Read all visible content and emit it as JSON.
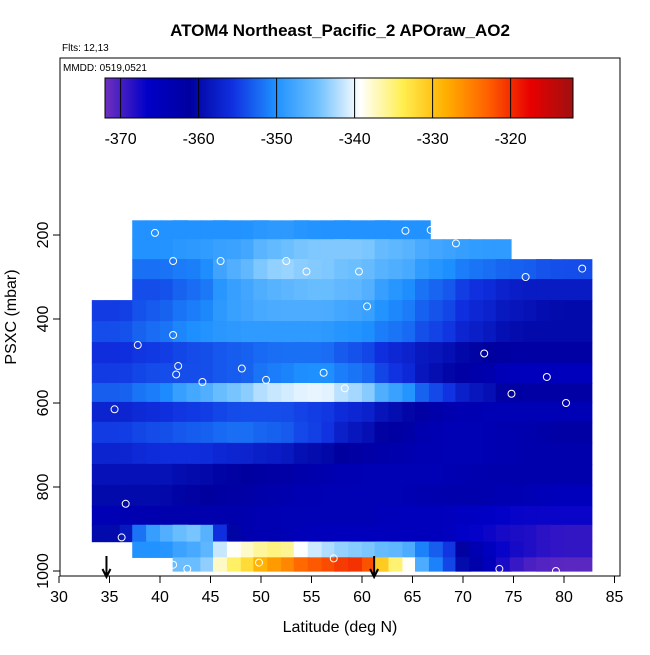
{
  "header": {
    "title": "ATOM4 Northeast_Pacific_2 APOraw_AO2",
    "flights_label": "Flts: 12,13",
    "dates_label": "MMDD: 0519,0521"
  },
  "chart_data": {
    "type": "heatmap",
    "xlabel": "Latitude (deg N)",
    "ylabel": "PSXC (mbar)",
    "xlim": [
      30,
      85
    ],
    "ylim": [
      1030,
      0
    ],
    "x_ticks": [
      30,
      35,
      40,
      45,
      50,
      55,
      60,
      65,
      70,
      75,
      80,
      85
    ],
    "y_ticks": [
      200,
      400,
      600,
      800,
      1000
    ],
    "colorbar": {
      "range": [
        -372,
        -312
      ],
      "ticks": [
        -370,
        -360,
        -350,
        -340,
        -330,
        -320
      ],
      "colors": [
        "#7030c0",
        "#0000c8",
        "#00009e",
        "#1030e0",
        "#1e90ff",
        "#6ec0ff",
        "#ffffff",
        "#ffee50",
        "#ffb000",
        "#ff6000",
        "#e80000",
        "#a01010"
      ]
    },
    "x_levels": [
      36,
      40,
      44,
      48,
      52,
      56,
      60,
      64,
      68,
      72,
      76,
      80
    ],
    "p_levels": [
      185,
      235,
      280,
      330,
      380,
      430,
      480,
      530,
      575,
      620,
      670,
      720,
      770,
      820,
      870,
      910,
      950,
      985
    ],
    "values": [
      [
        null,
        -350,
        -350,
        -350,
        -349,
        -350,
        -350,
        -350,
        null,
        null,
        null,
        null
      ],
      [
        null,
        -350,
        -349,
        -348,
        -345,
        -344,
        -344,
        -346,
        -348,
        -349,
        null,
        null
      ],
      [
        null,
        -352,
        -351,
        -346,
        -343,
        -344,
        -345,
        -347,
        -350,
        -352,
        -353,
        -354
      ],
      [
        null,
        -354,
        -352,
        -348,
        -346,
        -345,
        -346,
        -350,
        -353,
        -356,
        -358,
        -358
      ],
      [
        -355,
        -353,
        -351,
        -348,
        -347,
        -347,
        -348,
        -351,
        -354,
        -357,
        -359,
        -360
      ],
      [
        -354,
        -352,
        -350,
        -349,
        -349,
        -349,
        -350,
        -352,
        -355,
        -358,
        -360,
        -360
      ],
      [
        -356,
        -355,
        -354,
        -353,
        -352,
        -352,
        -354,
        -357,
        -359,
        -361,
        -362,
        -362
      ],
      [
        -355,
        -354,
        -354,
        -353,
        -351,
        -350,
        -352,
        -356,
        -360,
        -363,
        -365,
        -365
      ],
      [
        -353,
        -351,
        -347,
        -344,
        -341,
        -340,
        -343,
        -349,
        -355,
        -359,
        -362,
        -362
      ],
      [
        -357,
        -356,
        -355,
        -354,
        -354,
        -355,
        -357,
        -360,
        -363,
        -364,
        -364,
        -364
      ],
      [
        -355,
        -354,
        -353,
        -352,
        -353,
        -355,
        -359,
        -362,
        -364,
        -364,
        -363,
        -362
      ],
      [
        -357,
        -356,
        -356,
        -357,
        -358,
        -360,
        -362,
        -363,
        -364,
        -364,
        -363,
        -363
      ],
      [
        -359,
        -359,
        -360,
        -361,
        -362,
        -363,
        -364,
        -364,
        -364,
        -363,
        -363,
        -363
      ],
      [
        -360,
        -360,
        -361,
        -362,
        -363,
        -364,
        -364,
        -364,
        -363,
        -363,
        -364,
        -365
      ],
      [
        -364,
        -363,
        -363,
        -363,
        -364,
        -364,
        -364,
        -365,
        -365,
        -366,
        -367,
        -367
      ],
      [
        -360,
        -347,
        -344,
        -363,
        -364,
        -365,
        -365,
        -365,
        -365,
        -367,
        -368,
        -369
      ],
      [
        null,
        -350,
        -347,
        -338,
        -335,
        -342,
        -344,
        -346,
        -354,
        -365,
        -368,
        -369
      ],
      [
        null,
        null,
        -345,
        -333,
        -326,
        -322,
        -320,
        -337,
        -353,
        -364,
        -370,
        -371
      ]
    ],
    "profile_points": [
      {
        "x": 39.5,
        "y": 195
      },
      {
        "x": 41.3,
        "y": 262
      },
      {
        "x": 46,
        "y": 262
      },
      {
        "x": 52.5,
        "y": 262
      },
      {
        "x": 54.5,
        "y": 287
      },
      {
        "x": 59.7,
        "y": 287
      },
      {
        "x": 64.3,
        "y": 190
      },
      {
        "x": 66.8,
        "y": 188
      },
      {
        "x": 69.3,
        "y": 220
      },
      {
        "x": 76.2,
        "y": 300
      },
      {
        "x": 81.8,
        "y": 280
      },
      {
        "x": 60.5,
        "y": 370
      },
      {
        "x": 41.3,
        "y": 438
      },
      {
        "x": 37.8,
        "y": 462
      },
      {
        "x": 41.8,
        "y": 512
      },
      {
        "x": 41.6,
        "y": 532
      },
      {
        "x": 44.2,
        "y": 550
      },
      {
        "x": 48.1,
        "y": 518
      },
      {
        "x": 50.5,
        "y": 545
      },
      {
        "x": 56.2,
        "y": 528
      },
      {
        "x": 58.3,
        "y": 565
      },
      {
        "x": 72.1,
        "y": 482
      },
      {
        "x": 78.3,
        "y": 538
      },
      {
        "x": 74.8,
        "y": 578
      },
      {
        "x": 80.2,
        "y": 600
      },
      {
        "x": 35.5,
        "y": 615
      },
      {
        "x": 36.6,
        "y": 840
      },
      {
        "x": 36.2,
        "y": 920
      },
      {
        "x": 35.6,
        "y": 955
      },
      {
        "x": 41.3,
        "y": 985
      },
      {
        "x": 42.7,
        "y": 995
      },
      {
        "x": 49.8,
        "y": 980
      },
      {
        "x": 57.2,
        "y": 970
      },
      {
        "x": 73.6,
        "y": 995
      },
      {
        "x": 79.2,
        "y": 1000
      }
    ],
    "arrows": [
      34.7,
      61.2
    ]
  }
}
